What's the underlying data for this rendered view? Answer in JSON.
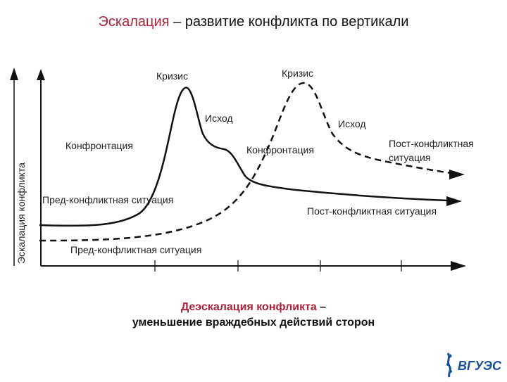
{
  "title": {
    "accent": "Эскалация",
    "rest": " – развитие конфликта по вертикали"
  },
  "y_axis_label": "Эскалация конфликта",
  "solid_curve_labels": {
    "pre": "Пред-конфликтная ситуация",
    "confrontation": "Конфронтация",
    "crisis": "Кризис",
    "outcome": "Исход",
    "post": "Пост-конфликтная ситуация"
  },
  "dashed_curve_labels": {
    "pre": "Пред-конфликтная ситуация",
    "confrontation": "Конфронтация",
    "crisis": "Кризис",
    "outcome": "Исход",
    "post_line1": "Пост-конфликтная",
    "post_line2": "ситуация"
  },
  "caption": {
    "accent": "Деэскалация конфликта",
    "rest": " –",
    "line2": "уменьшение враждебных действий сторон"
  },
  "logo": {
    "text": "ВГУЭС",
    "color": "#1a4fa0"
  },
  "colors": {
    "accent": "#b0203a",
    "line": "#111111"
  }
}
